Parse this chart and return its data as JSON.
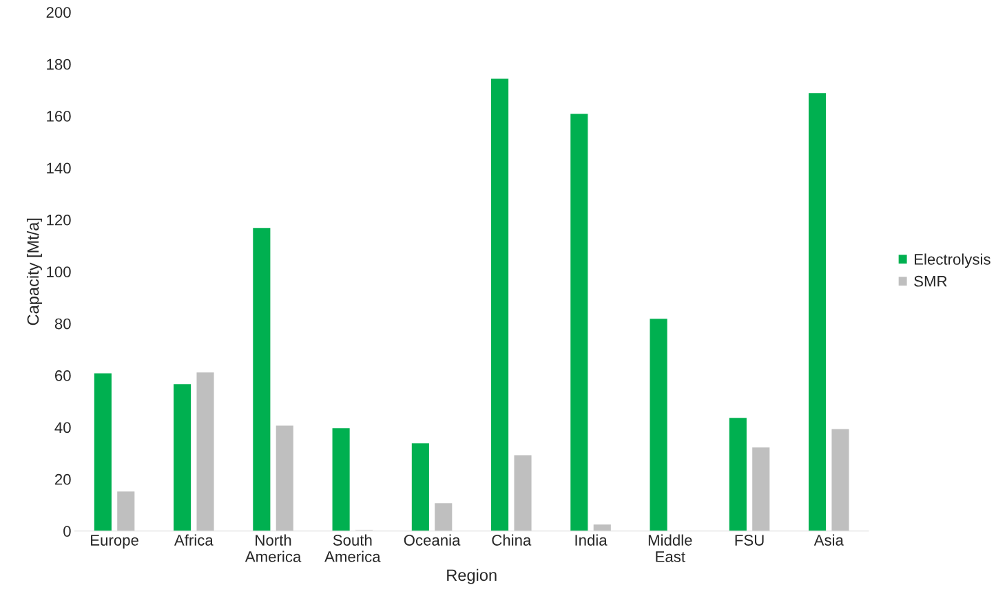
{
  "chart_data": {
    "type": "bar",
    "xlabel": "Region",
    "ylabel": "Capacity [Mt/a]",
    "categories": [
      "Europe",
      "Africa",
      "North\nAmerica",
      "South\nAmerica",
      "Oceania",
      "China",
      "India",
      "Middle\nEast",
      "FSU",
      "Asia"
    ],
    "series": [
      {
        "name": "Electrolysis",
        "color": "#00b050",
        "values": [
          61,
          56.8,
          117,
          39.8,
          34,
          174.5,
          161,
          82,
          43.8,
          169
        ]
      },
      {
        "name": "SMR",
        "color": "#bfbfbf",
        "values": [
          15.4,
          61.3,
          40.8,
          0.5,
          10.9,
          29.4,
          2.7,
          null,
          32.4,
          39.5
        ]
      }
    ],
    "ylim": [
      0,
      200
    ],
    "yticks": [
      0,
      20,
      40,
      60,
      80,
      100,
      120,
      140,
      160,
      180,
      200
    ],
    "grid": false,
    "legend": "right"
  }
}
